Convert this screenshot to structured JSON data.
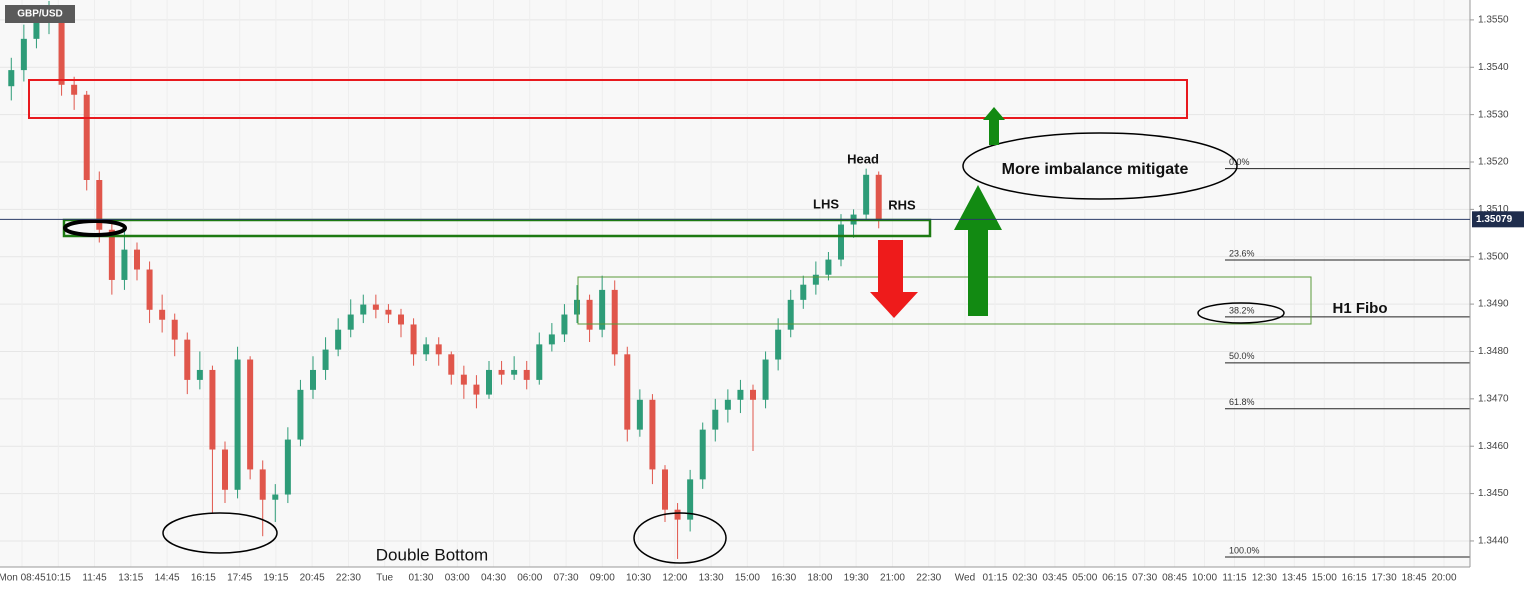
{
  "chart_data": {
    "type": "candlestick",
    "symbol": "GBP/USD",
    "up_color": "#2e9c78",
    "down_color": "#e0564b",
    "ylim": [
      1.34345,
      1.35542
    ],
    "yticks": [
      {
        "value": 1.344,
        "label": "1.3440"
      },
      {
        "value": 1.345,
        "label": "1.3450"
      },
      {
        "value": 1.346,
        "label": "1.3460"
      },
      {
        "value": 1.347,
        "label": "1.3470"
      },
      {
        "value": 1.348,
        "label": "1.3480"
      },
      {
        "value": 1.349,
        "label": "1.3490"
      },
      {
        "value": 1.35,
        "label": "1.3500"
      },
      {
        "value": 1.351,
        "label": "1.3510"
      },
      {
        "value": 1.352,
        "label": "1.3520"
      },
      {
        "value": 1.353,
        "label": "1.3530"
      },
      {
        "value": 1.354,
        "label": "1.3540"
      },
      {
        "value": 1.355,
        "label": "1.3550"
      }
    ],
    "x_labels": [
      "Mon 08:45",
      "10:15",
      "11:45",
      "13:15",
      "14:45",
      "16:15",
      "17:45",
      "19:15",
      "20:45",
      "22:30",
      "Tue",
      "01:30",
      "03:00",
      "04:30",
      "06:00",
      "07:30",
      "09:00",
      "10:30",
      "12:00",
      "13:30",
      "15:00",
      "16:30",
      "18:00",
      "19:30",
      "21:00",
      "22:30",
      "Wed",
      "01:15",
      "02:30",
      "03:45",
      "05:00",
      "06:15",
      "07:30",
      "08:45",
      "10:00",
      "11:15",
      "12:30",
      "13:45",
      "15:00",
      "16:15",
      "17:30",
      "18:45",
      "20:00"
    ],
    "last_price": 1.35079,
    "fib_levels": [
      {
        "label": "0.0%",
        "price": 1.35186
      },
      {
        "label": "23.6%",
        "price": 1.34993
      },
      {
        "label": "38.2%",
        "price": 1.34873
      },
      {
        "label": "50.0%",
        "price": 1.34776
      },
      {
        "label": "61.8%",
        "price": 1.34679
      },
      {
        "label": "100.0%",
        "price": 1.34366
      }
    ],
    "annotations": [
      "Head",
      "LHS",
      "RHS",
      "More imbalance mitigate",
      "H1 Fibo",
      "Double Bottom"
    ],
    "candles": [
      [
        1.3536,
        1.3542,
        1.3533,
        1.35394
      ],
      [
        1.35394,
        1.3549,
        1.3537,
        1.3546
      ],
      [
        1.3546,
        1.3553,
        1.3544,
        1.355
      ],
      [
        1.355,
        1.3554,
        1.3547,
        1.35511
      ],
      [
        1.35511,
        1.3552,
        1.3534,
        1.35363
      ],
      [
        1.35363,
        1.3538,
        1.3531,
        1.35342
      ],
      [
        1.35342,
        1.3535,
        1.3514,
        1.35162
      ],
      [
        1.35162,
        1.3518,
        1.3503,
        1.35057
      ],
      [
        1.35057,
        1.3507,
        1.3492,
        1.34951
      ],
      [
        1.34951,
        1.3506,
        1.3493,
        1.35015
      ],
      [
        1.35015,
        1.3503,
        1.3495,
        1.34973
      ],
      [
        1.34973,
        1.3499,
        1.3486,
        1.34888
      ],
      [
        1.34888,
        1.3492,
        1.3484,
        1.34867
      ],
      [
        1.34867,
        1.3488,
        1.3479,
        1.34825
      ],
      [
        1.34825,
        1.3484,
        1.3471,
        1.3474
      ],
      [
        1.3474,
        1.348,
        1.3472,
        1.34761
      ],
      [
        1.34761,
        1.3477,
        1.3446,
        1.34593
      ],
      [
        1.34593,
        1.3461,
        1.3448,
        1.34508
      ],
      [
        1.34508,
        1.3481,
        1.3449,
        1.34783
      ],
      [
        1.34783,
        1.3479,
        1.3453,
        1.34551
      ],
      [
        1.34551,
        1.3457,
        1.3441,
        1.34487
      ],
      [
        1.34487,
        1.3452,
        1.3444,
        1.34498
      ],
      [
        1.34498,
        1.3464,
        1.3448,
        1.34614
      ],
      [
        1.34614,
        1.3474,
        1.346,
        1.34719
      ],
      [
        1.34719,
        1.3479,
        1.347,
        1.34761
      ],
      [
        1.34761,
        1.3483,
        1.3474,
        1.34804
      ],
      [
        1.34804,
        1.3487,
        1.3479,
        1.34846
      ],
      [
        1.34846,
        1.3491,
        1.3483,
        1.34878
      ],
      [
        1.34878,
        1.3492,
        1.3486,
        1.34899
      ],
      [
        1.34899,
        1.3492,
        1.3487,
        1.34888
      ],
      [
        1.34888,
        1.349,
        1.3486,
        1.34878
      ],
      [
        1.34878,
        1.3489,
        1.3483,
        1.34857
      ],
      [
        1.34857,
        1.3487,
        1.3477,
        1.34794
      ],
      [
        1.34794,
        1.3483,
        1.3478,
        1.34815
      ],
      [
        1.34815,
        1.3483,
        1.3477,
        1.34794
      ],
      [
        1.34794,
        1.348,
        1.3473,
        1.34751
      ],
      [
        1.34751,
        1.3477,
        1.347,
        1.3473
      ],
      [
        1.3473,
        1.3475,
        1.3468,
        1.34709
      ],
      [
        1.34709,
        1.3478,
        1.347,
        1.34761
      ],
      [
        1.34761,
        1.3478,
        1.3473,
        1.34751
      ],
      [
        1.34751,
        1.3479,
        1.3474,
        1.34761
      ],
      [
        1.34761,
        1.3478,
        1.3472,
        1.3474
      ],
      [
        1.3474,
        1.3484,
        1.3473,
        1.34815
      ],
      [
        1.34815,
        1.3486,
        1.348,
        1.34836
      ],
      [
        1.34836,
        1.349,
        1.3482,
        1.34878
      ],
      [
        1.34878,
        1.3494,
        1.3486,
        1.34909
      ],
      [
        1.34909,
        1.3492,
        1.3482,
        1.34846
      ],
      [
        1.34846,
        1.3496,
        1.3483,
        1.3493
      ],
      [
        1.3493,
        1.3495,
        1.3477,
        1.34794
      ],
      [
        1.34794,
        1.3481,
        1.3461,
        1.34635
      ],
      [
        1.34635,
        1.3472,
        1.3462,
        1.34698
      ],
      [
        1.34698,
        1.3471,
        1.3452,
        1.34551
      ],
      [
        1.34551,
        1.3456,
        1.3444,
        1.34466
      ],
      [
        1.34466,
        1.3448,
        1.34362,
        1.34445
      ],
      [
        1.34445,
        1.3455,
        1.3442,
        1.3453
      ],
      [
        1.3453,
        1.3465,
        1.3451,
        1.34635
      ],
      [
        1.34635,
        1.347,
        1.3461,
        1.34677
      ],
      [
        1.34677,
        1.3472,
        1.3465,
        1.34698
      ],
      [
        1.34698,
        1.3474,
        1.3467,
        1.34719
      ],
      [
        1.34719,
        1.3473,
        1.3459,
        1.34698
      ],
      [
        1.34698,
        1.348,
        1.3468,
        1.34783
      ],
      [
        1.34783,
        1.3487,
        1.3476,
        1.34846
      ],
      [
        1.34846,
        1.3493,
        1.3483,
        1.34909
      ],
      [
        1.34909,
        1.3496,
        1.3489,
        1.34941
      ],
      [
        1.34941,
        1.3499,
        1.3492,
        1.34962
      ],
      [
        1.34962,
        1.3501,
        1.3495,
        1.34994
      ],
      [
        1.34994,
        1.3509,
        1.3498,
        1.35068
      ],
      [
        1.35068,
        1.351,
        1.3504,
        1.35089
      ],
      [
        1.35089,
        1.35186,
        1.3508,
        1.35173
      ],
      [
        1.35173,
        1.3518,
        1.3506,
        1.35079
      ]
    ]
  }
}
